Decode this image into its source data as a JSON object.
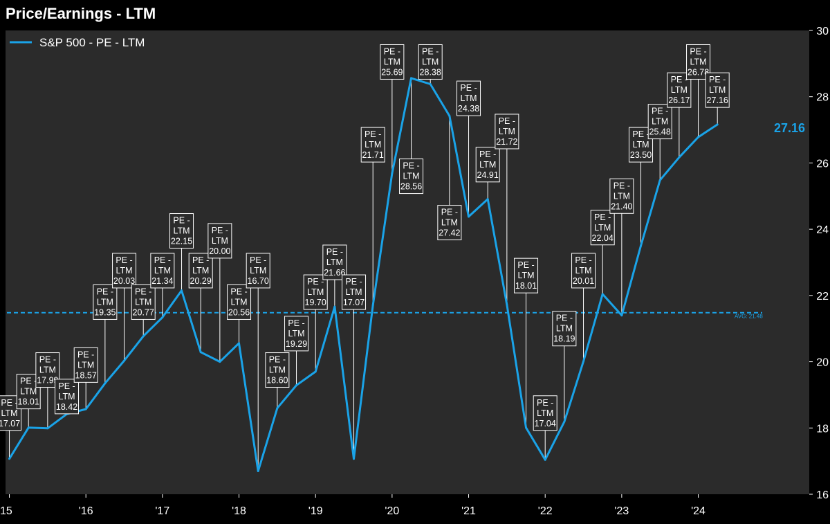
{
  "chart_data": {
    "type": "line",
    "title": "Price/Earnings - LTM",
    "series": [
      {
        "name": "S&P 500 - PE - LTM",
        "color": "#1aa3e8",
        "points": [
          {
            "x": 2015.0,
            "y": 17.07
          },
          {
            "x": 2015.25,
            "y": 18.01
          },
          {
            "x": 2015.5,
            "y": 17.99
          },
          {
            "x": 2015.75,
            "y": 18.42
          },
          {
            "x": 2016.0,
            "y": 18.57
          },
          {
            "x": 2016.25,
            "y": 19.35
          },
          {
            "x": 2016.5,
            "y": 20.03
          },
          {
            "x": 2016.75,
            "y": 20.77
          },
          {
            "x": 2017.0,
            "y": 21.34
          },
          {
            "x": 2017.25,
            "y": 22.15
          },
          {
            "x": 2017.5,
            "y": 20.29
          },
          {
            "x": 2017.75,
            "y": 20.0
          },
          {
            "x": 2018.0,
            "y": 20.56
          },
          {
            "x": 2018.25,
            "y": 16.7
          },
          {
            "x": 2018.5,
            "y": 18.6
          },
          {
            "x": 2018.75,
            "y": 19.29
          },
          {
            "x": 2019.0,
            "y": 19.7
          },
          {
            "x": 2019.25,
            "y": 21.66
          },
          {
            "x": 2019.5,
            "y": 17.07
          },
          {
            "x": 2019.75,
            "y": 21.71
          },
          {
            "x": 2020.0,
            "y": 25.69
          },
          {
            "x": 2020.25,
            "y": 28.56
          },
          {
            "x": 2020.5,
            "y": 28.38
          },
          {
            "x": 2020.75,
            "y": 27.42
          },
          {
            "x": 2021.0,
            "y": 24.38
          },
          {
            "x": 2021.25,
            "y": 24.91
          },
          {
            "x": 2021.5,
            "y": 21.72
          },
          {
            "x": 2021.75,
            "y": 18.01
          },
          {
            "x": 2022.0,
            "y": 17.04
          },
          {
            "x": 2022.25,
            "y": 18.19
          },
          {
            "x": 2022.5,
            "y": 20.01
          },
          {
            "x": 2022.75,
            "y": 22.04
          },
          {
            "x": 2023.0,
            "y": 21.4
          },
          {
            "x": 2023.25,
            "y": 23.5
          },
          {
            "x": 2023.5,
            "y": 25.48
          },
          {
            "x": 2023.75,
            "y": 26.17
          },
          {
            "x": 2024.0,
            "y": 26.78
          },
          {
            "x": 2024.25,
            "y": 27.16
          }
        ]
      }
    ],
    "callout_prefix": [
      "PE -",
      "LTM"
    ],
    "callouts": [
      {
        "x": 2015.0,
        "y": 17.07,
        "label_y": 18.45,
        "label": "17.07"
      },
      {
        "x": 2015.25,
        "y": 18.01,
        "label_y": 19.1,
        "label": "18.01"
      },
      {
        "x": 2015.5,
        "y": 17.99,
        "label_y": 19.75,
        "label": "17.99"
      },
      {
        "x": 2015.75,
        "y": 18.42,
        "label_y": 18.95,
        "label": "18.42"
      },
      {
        "x": 2016.0,
        "y": 18.57,
        "label_y": 19.9,
        "label": "18.57"
      },
      {
        "x": 2016.25,
        "y": 19.35,
        "label_y": 21.8,
        "label": "19.35"
      },
      {
        "x": 2016.5,
        "y": 20.03,
        "label_y": 22.75,
        "label": "20.03"
      },
      {
        "x": 2016.75,
        "y": 20.77,
        "label_y": 21.8,
        "label": "20.77"
      },
      {
        "x": 2017.0,
        "y": 21.34,
        "label_y": 22.75,
        "label": "21.34"
      },
      {
        "x": 2017.25,
        "y": 22.15,
        "label_y": 23.95,
        "label": "22.15"
      },
      {
        "x": 2017.5,
        "y": 20.29,
        "label_y": 22.75,
        "label": "20.29"
      },
      {
        "x": 2017.75,
        "y": 20.0,
        "label_y": 23.65,
        "label": "20.00"
      },
      {
        "x": 2018.0,
        "y": 20.56,
        "label_y": 21.8,
        "label": "20.56"
      },
      {
        "x": 2018.25,
        "y": 16.7,
        "label_y": 22.75,
        "label": "16.70"
      },
      {
        "x": 2018.5,
        "y": 18.6,
        "label_y": 19.75,
        "label": "18.60"
      },
      {
        "x": 2018.75,
        "y": 19.29,
        "label_y": 20.85,
        "label": "19.29"
      },
      {
        "x": 2019.0,
        "y": 19.7,
        "label_y": 22.1,
        "label": "19.70"
      },
      {
        "x": 2019.25,
        "y": 21.66,
        "label_y": 23.0,
        "label": "21.66"
      },
      {
        "x": 2019.5,
        "y": 17.07,
        "label_y": 22.1,
        "label": "17.07"
      },
      {
        "x": 2019.75,
        "y": 21.71,
        "label_y": 26.55,
        "label": "21.71"
      },
      {
        "x": 2020.0,
        "y": 25.69,
        "label_y": 29.05,
        "label": "25.69"
      },
      {
        "x": 2020.25,
        "y": 28.56,
        "label_y": 25.6,
        "label": "28.56"
      },
      {
        "x": 2020.5,
        "y": 28.38,
        "label_y": 29.05,
        "label": "28.38"
      },
      {
        "x": 2020.75,
        "y": 27.42,
        "label_y": 24.2,
        "label": "27.42"
      },
      {
        "x": 2021.0,
        "y": 24.38,
        "label_y": 27.95,
        "label": "24.38"
      },
      {
        "x": 2021.25,
        "y": 24.91,
        "label_y": 25.95,
        "label": "24.91"
      },
      {
        "x": 2021.5,
        "y": 21.72,
        "label_y": 26.95,
        "label": "21.72"
      },
      {
        "x": 2021.75,
        "y": 18.01,
        "label_y": 22.6,
        "label": "18.01"
      },
      {
        "x": 2022.0,
        "y": 17.04,
        "label_y": 18.45,
        "label": "17.04"
      },
      {
        "x": 2022.25,
        "y": 18.19,
        "label_y": 21.0,
        "label": "18.19"
      },
      {
        "x": 2022.5,
        "y": 20.01,
        "label_y": 22.75,
        "label": "20.01"
      },
      {
        "x": 2022.75,
        "y": 22.04,
        "label_y": 24.05,
        "label": "22.04"
      },
      {
        "x": 2023.0,
        "y": 21.4,
        "label_y": 25.0,
        "label": "21.40"
      },
      {
        "x": 2023.25,
        "y": 23.5,
        "label_y": 26.55,
        "label": "23.50"
      },
      {
        "x": 2023.5,
        "y": 25.48,
        "label_y": 27.25,
        "label": "25.48"
      },
      {
        "x": 2023.75,
        "y": 26.17,
        "label_y": 28.2,
        "label": "26.17"
      },
      {
        "x": 2024.0,
        "y": 26.78,
        "label_y": 29.05,
        "label": "26.78"
      },
      {
        "x": 2024.25,
        "y": 27.16,
        "label_y": 28.2,
        "label": "27.16"
      }
    ],
    "average": {
      "value": 21.48,
      "label": "AVG: 21.48"
    },
    "last_value_label": "27.16",
    "x_ticks": [
      {
        "x": 2015,
        "label": "15"
      },
      {
        "x": 2016,
        "label": "'16"
      },
      {
        "x": 2017,
        "label": "'17"
      },
      {
        "x": 2018,
        "label": "'18"
      },
      {
        "x": 2019,
        "label": "'19"
      },
      {
        "x": 2020,
        "label": "'20"
      },
      {
        "x": 2021,
        "label": "'21"
      },
      {
        "x": 2022,
        "label": "'22"
      },
      {
        "x": 2023,
        "label": "'23"
      },
      {
        "x": 2024,
        "label": "'24"
      }
    ],
    "y_ticks": [
      16,
      18,
      20,
      22,
      24,
      26,
      28,
      30
    ],
    "xlim": [
      2014.95,
      2025.45
    ],
    "ylim": [
      16,
      30
    ],
    "grid": false,
    "legend_position": "top-left",
    "colors": {
      "background": "#000000",
      "plot_background": "#2b2b2b",
      "line": "#1aa3e8"
    }
  }
}
